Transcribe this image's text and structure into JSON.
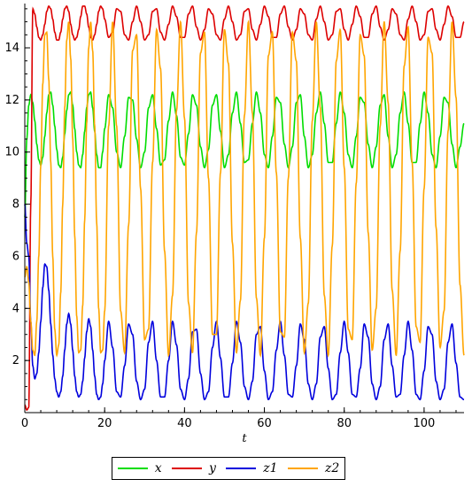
{
  "chart_data": {
    "type": "line",
    "title": "",
    "xlabel": "t",
    "ylabel": "",
    "xlim": [
      0,
      110
    ],
    "ylim": [
      0,
      15.7
    ],
    "x_ticks": [
      0,
      20,
      40,
      60,
      80,
      100
    ],
    "y_ticks": [
      2,
      4,
      6,
      8,
      10,
      12,
      14
    ],
    "grid": false,
    "legend_position": "bottom",
    "period": 6.3,
    "x": [
      0,
      0.5,
      1,
      1.5,
      2,
      2.5,
      3,
      3.5,
      4,
      4.5,
      5,
      5.5,
      6,
      6.5,
      7,
      7.5,
      8,
      8.5,
      9,
      9.5,
      10,
      10.5,
      11,
      11.5,
      12,
      12.5,
      13,
      13.5,
      14,
      14.5,
      15,
      15.5,
      16,
      16.5,
      17,
      17.5,
      18,
      18.5,
      19,
      19.5,
      20,
      21,
      22,
      23,
      24,
      25,
      26,
      27,
      28,
      29,
      30,
      31,
      32,
      33,
      34,
      35,
      36,
      37,
      38,
      39,
      40,
      41,
      42,
      43,
      44,
      45,
      46,
      47,
      48,
      49,
      50,
      51,
      52,
      53,
      54,
      55,
      56,
      57,
      58,
      59,
      60,
      61,
      62,
      63,
      64,
      65,
      66,
      67,
      68,
      69,
      70,
      71,
      72,
      73,
      74,
      75,
      76,
      77,
      78,
      79,
      80,
      81,
      82,
      83,
      84,
      85,
      86,
      87,
      88,
      89,
      90,
      91,
      92,
      93,
      94,
      95,
      96,
      97,
      98,
      99,
      100,
      101,
      102,
      103,
      104,
      105,
      106,
      107,
      108,
      109,
      110
    ],
    "series": [
      {
        "name": "x",
        "color": "#00dd00",
        "values": [
          7.5,
          10.5,
          11.8,
          12.2,
          11.9,
          11.2,
          10.3,
          9.7,
          9.5,
          9.8,
          10.6,
          11.5,
          12.2,
          12.3,
          11.8,
          11.0,
          10.1,
          9.5,
          9.4,
          9.8,
          10.7,
          11.6,
          12.2,
          12.3,
          11.8,
          10.9,
          10.0,
          9.5,
          9.4,
          9.9,
          10.8,
          11.7,
          12.2,
          12.3,
          11.7,
          10.8,
          9.9,
          9.4,
          9.4,
          10.0,
          10.9,
          12.2,
          11.7,
          10.0,
          9.4,
          10.6,
          12.1,
          12.0,
          10.5,
          9.4,
          10.0,
          11.7,
          12.2,
          10.9,
          9.5,
          9.7,
          11.2,
          12.3,
          11.4,
          9.8,
          9.5,
          10.7,
          12.2,
          11.8,
          10.2,
          9.4,
          10.1,
          11.8,
          12.2,
          10.8,
          9.4,
          9.9,
          11.5,
          12.3,
          11.1,
          9.6,
          9.7,
          11.1,
          12.3,
          11.5,
          9.9,
          9.4,
          10.6,
          12.1,
          11.9,
          10.3,
          9.4,
          10.2,
          11.9,
          12.2,
          10.6,
          9.4,
          9.9,
          11.5,
          12.3,
          11.1,
          9.6,
          9.6,
          11.1,
          12.3,
          11.5,
          9.9,
          9.4,
          10.6,
          12.1,
          11.9,
          10.3,
          9.4,
          10.2,
          11.8,
          12.2,
          10.6,
          9.4,
          9.9,
          11.5,
          12.3,
          11.1,
          9.6,
          9.6,
          11.1,
          12.3,
          11.5,
          9.9,
          9.4,
          10.6,
          12.1,
          11.9,
          10.3,
          9.4,
          10.2,
          11.1
        ]
      },
      {
        "name": "y",
        "color": "#dd0000",
        "values": [
          0.3,
          0.1,
          0.2,
          8.0,
          15.5,
          15.3,
          14.8,
          14.4,
          14.3,
          14.5,
          14.9,
          15.4,
          15.6,
          15.5,
          15.1,
          14.6,
          14.3,
          14.3,
          14.6,
          15.1,
          15.5,
          15.6,
          15.4,
          14.9,
          14.5,
          14.3,
          14.4,
          14.7,
          15.2,
          15.6,
          15.6,
          15.3,
          14.8,
          14.4,
          14.3,
          14.5,
          14.9,
          15.4,
          15.6,
          15.5,
          15.1,
          14.4,
          14.6,
          15.5,
          15.4,
          14.5,
          14.3,
          15.0,
          15.6,
          15.0,
          14.3,
          14.5,
          15.4,
          15.5,
          14.6,
          14.3,
          14.9,
          15.6,
          15.2,
          14.4,
          14.4,
          15.3,
          15.6,
          14.8,
          14.3,
          14.7,
          15.5,
          15.3,
          14.5,
          14.3,
          15.1,
          15.6,
          15.0,
          14.3,
          14.5,
          15.4,
          15.5,
          14.7,
          14.3,
          14.9,
          15.6,
          15.2,
          14.4,
          14.4,
          15.3,
          15.6,
          14.8,
          14.3,
          14.7,
          15.5,
          15.3,
          14.5,
          14.3,
          15.1,
          15.6,
          15.0,
          14.3,
          14.5,
          15.4,
          15.5,
          14.7,
          14.3,
          14.9,
          15.6,
          15.2,
          14.4,
          14.4,
          15.3,
          15.6,
          14.8,
          14.3,
          14.7,
          15.5,
          15.3,
          14.5,
          14.3,
          15.1,
          15.6,
          15.0,
          14.3,
          14.5,
          15.4,
          15.5,
          14.7,
          14.3,
          14.9,
          15.6,
          15.2,
          14.4,
          14.4,
          15.0
        ]
      },
      {
        "name": "z1",
        "color": "#0000dd",
        "values": [
          8.0,
          6.5,
          6.0,
          3.5,
          1.8,
          1.3,
          1.5,
          2.3,
          3.5,
          4.8,
          5.7,
          5.6,
          4.7,
          3.4,
          2.2,
          1.3,
          0.8,
          0.6,
          0.8,
          1.4,
          2.4,
          3.4,
          3.8,
          3.4,
          2.4,
          1.4,
          0.8,
          0.6,
          0.7,
          1.2,
          2.1,
          3.1,
          3.6,
          3.3,
          2.4,
          1.4,
          0.7,
          0.5,
          0.6,
          1.1,
          2.0,
          3.5,
          2.5,
          0.8,
          0.6,
          1.8,
          3.4,
          3.0,
          1.2,
          0.5,
          0.9,
          2.7,
          3.5,
          2.0,
          0.6,
          0.6,
          2.0,
          3.5,
          2.6,
          0.9,
          0.5,
          1.3,
          3.1,
          3.2,
          1.5,
          0.5,
          0.8,
          2.5,
          3.5,
          2.1,
          0.6,
          0.6,
          1.9,
          3.5,
          2.7,
          1.0,
          0.5,
          1.2,
          3.0,
          3.3,
          1.6,
          0.5,
          0.8,
          2.4,
          3.5,
          2.2,
          0.7,
          0.6,
          1.8,
          3.4,
          2.8,
          1.1,
          0.5,
          1.1,
          2.9,
          3.3,
          1.7,
          0.5,
          0.7,
          2.3,
          3.5,
          2.3,
          0.7,
          0.6,
          1.7,
          3.4,
          2.9,
          1.1,
          0.5,
          1.0,
          2.8,
          3.4,
          1.8,
          0.6,
          0.7,
          2.2,
          3.5,
          2.4,
          0.7,
          0.5,
          1.6,
          3.3,
          3.0,
          1.2,
          0.5,
          0.9,
          2.7,
          3.4,
          1.9,
          0.6,
          0.5
        ]
      },
      {
        "name": "z2",
        "color": "#ffa500",
        "values": [
          5.2,
          5.6,
          5.0,
          3.5,
          2.4,
          2.2,
          3.5,
          6.0,
          9.5,
          12.6,
          14.5,
          14.6,
          12.8,
          9.6,
          6.0,
          3.2,
          2.2,
          2.6,
          4.6,
          8.0,
          11.7,
          14.3,
          15.0,
          13.6,
          10.5,
          6.8,
          3.7,
          2.3,
          2.4,
          4.1,
          7.4,
          11.1,
          14.0,
          15.0,
          13.9,
          11.0,
          7.3,
          4.0,
          2.3,
          2.4,
          3.9,
          11.0,
          15.0,
          11.0,
          3.9,
          2.3,
          7.2,
          13.9,
          14.5,
          8.6,
          2.8,
          3.2,
          9.6,
          14.7,
          13.2,
          6.2,
          2.2,
          4.5,
          11.6,
          15.0,
          11.3,
          4.2,
          2.3,
          6.9,
          13.8,
          14.6,
          9.0,
          3.0,
          3.0,
          9.2,
          14.7,
          13.4,
          6.5,
          2.3,
          4.3,
          11.4,
          15.0,
          11.5,
          4.4,
          2.2,
          6.7,
          13.7,
          14.6,
          9.2,
          3.1,
          2.9,
          9.0,
          14.6,
          13.5,
          6.7,
          2.3,
          4.2,
          11.2,
          15.0,
          11.7,
          4.5,
          2.2,
          6.4,
          13.5,
          14.7,
          9.4,
          3.2,
          2.8,
          8.8,
          14.5,
          13.7,
          6.9,
          2.4,
          4.0,
          11.0,
          15.0,
          11.9,
          4.7,
          2.2,
          6.2,
          13.3,
          14.8,
          9.6,
          3.3,
          2.7,
          8.6,
          14.4,
          13.8,
          7.1,
          2.5,
          3.9,
          10.8,
          15.0,
          12.1,
          4.9,
          2.2
        ]
      }
    ]
  }
}
